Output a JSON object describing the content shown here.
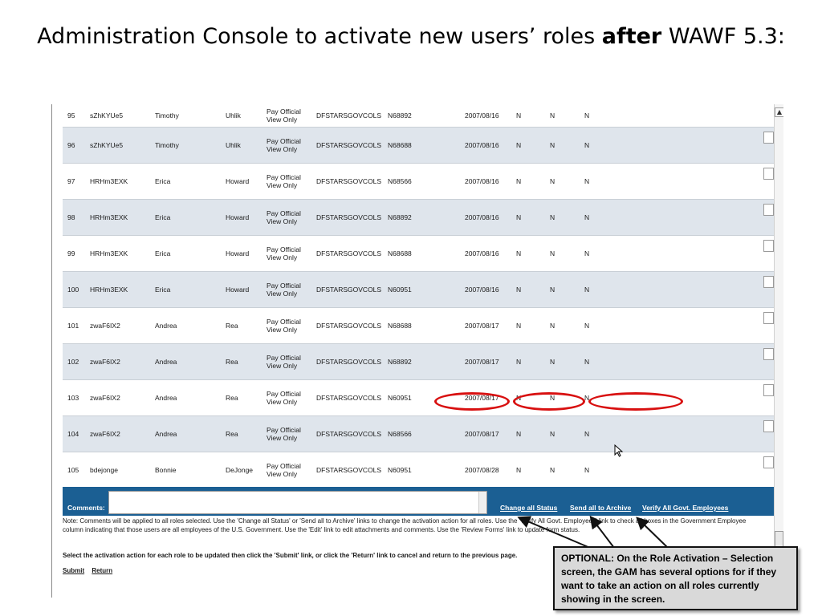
{
  "title": {
    "prefix": "Administration Console to activate new users’ roles ",
    "emphasis": "after",
    "suffix": " WAWF 5.3:"
  },
  "rows": [
    {
      "num": "95",
      "user": "sZhKYUe5",
      "first": "Timothy",
      "last": "Uhlik",
      "role1": "Pay Official",
      "role2": "View Only",
      "org": "DFSTARSGOVCOLS",
      "dodaac": "N68892",
      "date": "2007/08/16",
      "f1": "N",
      "f2": "N",
      "f3": "N"
    },
    {
      "num": "96",
      "user": "sZhKYUe5",
      "first": "Timothy",
      "last": "Uhlik",
      "role1": "Pay Official",
      "role2": "View Only",
      "org": "DFSTARSGOVCOLS",
      "dodaac": "N68688",
      "date": "2007/08/16",
      "f1": "N",
      "f2": "N",
      "f3": "N"
    },
    {
      "num": "97",
      "user": "HRHm3EXK",
      "first": "Erica",
      "last": "Howard",
      "role1": "Pay Official",
      "role2": "View Only",
      "org": "DFSTARSGOVCOLS",
      "dodaac": "N68566",
      "date": "2007/08/16",
      "f1": "N",
      "f2": "N",
      "f3": "N"
    },
    {
      "num": "98",
      "user": "HRHm3EXK",
      "first": "Erica",
      "last": "Howard",
      "role1": "Pay Official",
      "role2": "View Only",
      "org": "DFSTARSGOVCOLS",
      "dodaac": "N68892",
      "date": "2007/08/16",
      "f1": "N",
      "f2": "N",
      "f3": "N"
    },
    {
      "num": "99",
      "user": "HRHm3EXK",
      "first": "Erica",
      "last": "Howard",
      "role1": "Pay Official",
      "role2": "View Only",
      "org": "DFSTARSGOVCOLS",
      "dodaac": "N68688",
      "date": "2007/08/16",
      "f1": "N",
      "f2": "N",
      "f3": "N"
    },
    {
      "num": "100",
      "user": "HRHm3EXK",
      "first": "Erica",
      "last": "Howard",
      "role1": "Pay Official",
      "role2": "View Only",
      "org": "DFSTARSGOVCOLS",
      "dodaac": "N60951",
      "date": "2007/08/16",
      "f1": "N",
      "f2": "N",
      "f3": "N"
    },
    {
      "num": "101",
      "user": "zwaF6IX2",
      "first": "Andrea",
      "last": "Rea",
      "role1": "Pay Official",
      "role2": "View Only",
      "org": "DFSTARSGOVCOLS",
      "dodaac": "N68688",
      "date": "2007/08/17",
      "f1": "N",
      "f2": "N",
      "f3": "N"
    },
    {
      "num": "102",
      "user": "zwaF6IX2",
      "first": "Andrea",
      "last": "Rea",
      "role1": "Pay Official",
      "role2": "View Only",
      "org": "DFSTARSGOVCOLS",
      "dodaac": "N68892",
      "date": "2007/08/17",
      "f1": "N",
      "f2": "N",
      "f3": "N"
    },
    {
      "num": "103",
      "user": "zwaF6IX2",
      "first": "Andrea",
      "last": "Rea",
      "role1": "Pay Official",
      "role2": "View Only",
      "org": "DFSTARSGOVCOLS",
      "dodaac": "N60951",
      "date": "2007/08/17",
      "f1": "N",
      "f2": "N",
      "f3": "N"
    },
    {
      "num": "104",
      "user": "zwaF6IX2",
      "first": "Andrea",
      "last": "Rea",
      "role1": "Pay Official",
      "role2": "View Only",
      "org": "DFSTARSGOVCOLS",
      "dodaac": "N68566",
      "date": "2007/08/17",
      "f1": "N",
      "f2": "N",
      "f3": "N"
    },
    {
      "num": "105",
      "user": "bdejonge",
      "first": "Bonnie",
      "last": "DeJonge",
      "role1": "Pay Official",
      "role2": "View Only",
      "org": "DFSTARSGOVCOLS",
      "dodaac": "N60951",
      "date": "2007/08/28",
      "f1": "N",
      "f2": "N",
      "f3": "N"
    }
  ],
  "comments": {
    "label": "Comments:",
    "value": "",
    "links": {
      "change_all_status": "Change all Status",
      "send_all_to_archive": "Send all to Archive",
      "verify_all_govt": "Verify All Govt. Employees"
    }
  },
  "note": "Note: Comments will be applied to all roles selected. Use the 'Change all Status' or 'Send all to Archive' links to change the activation action for all roles. Use the 'Verify All Govt. Employees' link to check all boxes in the Government Employee column indicating that those users are all employees of the U.S. Government. Use the 'Edit' link to edit attachments and comments. Use the 'Review Forms' link to update form status.",
  "instruction": "Select the activation action for each role to be updated then click the 'Submit' link, or click the 'Return' link to cancel and return to the previous page.",
  "actions": {
    "submit": "Submit",
    "return": "Return"
  },
  "callout": "OPTIONAL: On the Role Activation – Selection screen, the GAM has several options for if they want to take an action on all roles currently showing in the screen.",
  "colors": {
    "bar": "#1b5f93",
    "row_alt": "#dfe5ec",
    "highlight": "#d81010",
    "callout_bg": "#d9d9d9"
  },
  "icons": {
    "scroll_up": "▲",
    "cursor": "mouse-pointer-icon"
  }
}
